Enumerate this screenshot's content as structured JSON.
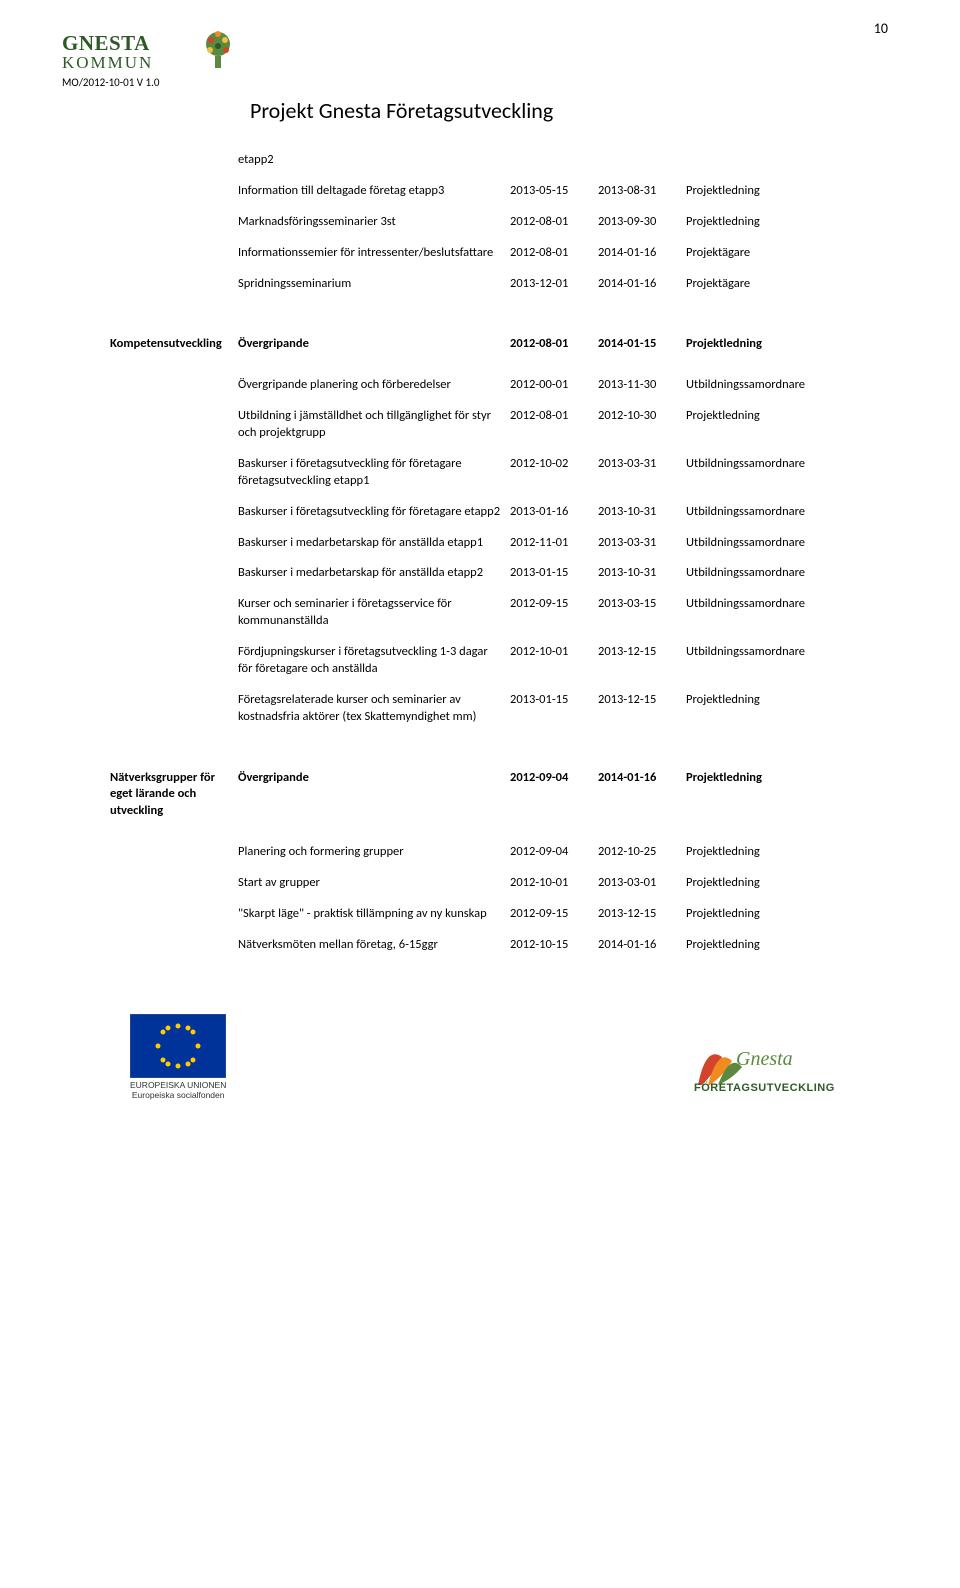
{
  "page_number": "10",
  "municipality_name": "GNESTA",
  "municipality_sub": "KOMMUN",
  "doc_ref": "MO/2012-10-01 V 1.0",
  "project_title": "Projekt Gnesta Företagsutveckling",
  "colors": {
    "logo_green": "#5a8a3f",
    "logo_green_dark": "#2e5a27",
    "eu_blue": "#003399",
    "eu_gold": "#ffcc00",
    "flame_red": "#d4442a",
    "flame_orange": "#f08b1f",
    "flame_green": "#5a8a3f"
  },
  "eu_caption_line1": "EUROPEISKA UNIONEN",
  "eu_caption_line2": "Europeiska socialfonden",
  "footer_right_text": "FÖRETAGSUTVECKLING",
  "footer_right_brand": "Gnesta",
  "sections": [
    {
      "category": "",
      "rows": [
        {
          "desc": "etapp2",
          "d1": "",
          "d2": "",
          "resp": ""
        },
        {
          "desc": "Information till deltagade företag etapp3",
          "d1": "2013-05-15",
          "d2": "2013-08-31",
          "resp": "Projektledning"
        },
        {
          "desc": "Marknadsföringsseminarier 3st",
          "d1": "2012-08-01",
          "d2": "2013-09-30",
          "resp": "Projektledning"
        },
        {
          "desc": "Informationssemier för intressenter/beslutsfattare",
          "d1": "2012-08-01",
          "d2": "2014-01-16",
          "resp": "Projektägare"
        },
        {
          "desc": "Spridningsseminarium",
          "d1": "2013-12-01",
          "d2": "2014-01-16",
          "resp": "Projektägare"
        }
      ]
    },
    {
      "category": "Kompetensutveckling",
      "header": {
        "desc": "Övergripande",
        "d1": "2012-08-01",
        "d2": "2014-01-15",
        "resp": "Projektledning"
      },
      "rows": [
        {
          "desc": "Övergripande planering och förberedelser",
          "d1": "2012-00-01",
          "d2": "2013-11-30",
          "resp": "Utbildningssamordnare"
        },
        {
          "desc": "Utbildning i jämställdhet och tillgänglighet för styr och projektgrupp",
          "d1": "2012-08-01",
          "d2": "2012-10-30",
          "resp": "Projektledning"
        },
        {
          "desc": "Baskurser i företagsutveckling för företagare företagsutveckling etapp1",
          "d1": "2012-10-02",
          "d2": "2013-03-31",
          "resp": "Utbildningssamordnare"
        },
        {
          "desc": "Baskurser i företagsutveckling för företagare etapp2",
          "d1": "2013-01-16",
          "d2": "2013-10-31",
          "resp": "Utbildningssamordnare"
        },
        {
          "desc": "Baskurser i medarbetarskap för anställda etapp1",
          "d1": "2012-11-01",
          "d2": "2013-03-31",
          "resp": "Utbildningssamordnare"
        },
        {
          "desc": "Baskurser i medarbetarskap för anställda etapp2",
          "d1": "2013-01-15",
          "d2": "2013-10-31",
          "resp": "Utbildningssamordnare"
        },
        {
          "desc": "Kurser och seminarier i företagsservice för kommunanställda",
          "d1": "2012-09-15",
          "d2": "2013-03-15",
          "resp": "Utbildningssamordnare"
        },
        {
          "desc": "Fördjupningskurser i företagsutveckling 1-3 dagar för företagare och anställda",
          "d1": "2012-10-01",
          "d2": "2013-12-15",
          "resp": "Utbildningssamordnare"
        },
        {
          "desc": "Företagsrelaterade kurser och seminarier av kostnadsfria aktörer (tex Skattemyndighet mm)",
          "d1": "2013-01-15",
          "d2": "2013-12-15",
          "resp": "Projektledning"
        }
      ]
    },
    {
      "category": "Nätverksgrupper för eget lärande och utveckling",
      "header": {
        "desc": "Övergripande",
        "d1": "2012-09-04",
        "d2": "2014-01-16",
        "resp": "Projektledning"
      },
      "rows": [
        {
          "desc": "Planering och formering grupper",
          "d1": "2012-09-04",
          "d2": "2012-10-25",
          "resp": "Projektledning"
        },
        {
          "desc": "Start av grupper",
          "d1": "2012-10-01",
          "d2": "2013-03-01",
          "resp": "Projektledning"
        },
        {
          "desc": "\"Skarpt läge\" - praktisk tillämpning av ny kunskap",
          "d1": "2012-09-15",
          "d2": "2013-12-15",
          "resp": "Projektledning"
        },
        {
          "desc": "Nätverksmöten mellan företag, 6-15ggr",
          "d1": "2012-10-15",
          "d2": "2014-01-16",
          "resp": "Projektledning"
        }
      ]
    }
  ]
}
